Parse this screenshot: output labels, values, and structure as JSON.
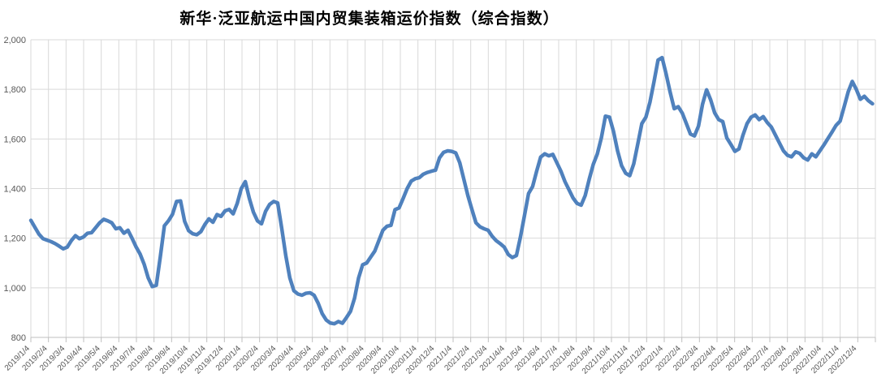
{
  "title": "新华·泛亚航运中国内贸集装箱运价指数（综合指数）",
  "colors": {
    "line": "#4F81BD",
    "grid": "#D9D9D9",
    "axis": "#BFBFBF",
    "tick_label": "#595959",
    "title": "#000000",
    "background": "#FFFFFF"
  },
  "chart_data": {
    "type": "line",
    "title": "新华·泛亚航运中国内贸集装箱运价指数（综合指数）",
    "xlabel": "",
    "ylabel": "",
    "ylim": [
      800,
      2000
    ],
    "grid": true,
    "legend_position": "none",
    "y_ticks": [
      {
        "value": 800,
        "label": "800"
      },
      {
        "value": 1000,
        "label": "1,000"
      },
      {
        "value": 1200,
        "label": "1,200"
      },
      {
        "value": 1400,
        "label": "1,400"
      },
      {
        "value": 1600,
        "label": "1,600"
      },
      {
        "value": 1800,
        "label": "1,800"
      },
      {
        "value": 2000,
        "label": "2,000"
      }
    ],
    "x_tick_labels": [
      "2019/1/4",
      "2019/2/4",
      "2019/3/4",
      "2019/4/4",
      "2019/5/4",
      "2019/6/4",
      "2019/7/4",
      "2019/8/4",
      "2019/9/4",
      "2019/10/4",
      "2019/11/4",
      "2019/12/4",
      "2020/1/4",
      "2020/2/4",
      "2020/3/4",
      "2020/4/4",
      "2020/5/4",
      "2020/6/4",
      "2020/7/4",
      "2020/8/4",
      "2020/9/4",
      "2020/10/4",
      "2020/11/4",
      "2020/12/4",
      "2021/1/4",
      "2021/2/4",
      "2021/3/4",
      "2021/4/4",
      "2021/5/4",
      "2021/6/4",
      "2021/7/4",
      "2021/8/4",
      "2021/9/4",
      "2021/10/4",
      "2021/11/4",
      "2021/12/4",
      "2022/1/4",
      "2022/2/4",
      "2022/3/4",
      "2022/4/4",
      "2022/5/4",
      "2022/6/4",
      "2022/7/4",
      "2022/8/4",
      "2022/9/4",
      "2022/10/4",
      "2022/11/4",
      "2022/12/4"
    ],
    "series": [
      {
        "name": "综合指数",
        "x_start": "2019/1/4",
        "x_interval_days": 7,
        "values": [
          1272,
          1244,
          1216,
          1198,
          1192,
          1186,
          1178,
          1168,
          1157,
          1164,
          1190,
          1210,
          1198,
          1205,
          1220,
          1222,
          1242,
          1262,
          1276,
          1270,
          1262,
          1238,
          1242,
          1220,
          1232,
          1200,
          1165,
          1136,
          1095,
          1040,
          1005,
          1010,
          1126,
          1250,
          1270,
          1296,
          1348,
          1350,
          1268,
          1230,
          1218,
          1214,
          1226,
          1255,
          1278,
          1264,
          1295,
          1288,
          1310,
          1316,
          1298,
          1340,
          1400,
          1428,
          1360,
          1305,
          1270,
          1258,
          1308,
          1336,
          1348,
          1342,
          1240,
          1130,
          1040,
          988,
          975,
          970,
          978,
          980,
          970,
          938,
          896,
          870,
          858,
          855,
          864,
          857,
          880,
          905,
          958,
          1040,
          1093,
          1100,
          1124,
          1148,
          1190,
          1232,
          1248,
          1252,
          1315,
          1322,
          1360,
          1400,
          1430,
          1440,
          1444,
          1458,
          1465,
          1470,
          1474,
          1524,
          1546,
          1552,
          1550,
          1544,
          1504,
          1438,
          1372,
          1316,
          1262,
          1246,
          1238,
          1232,
          1208,
          1190,
          1178,
          1164,
          1134,
          1122,
          1130,
          1205,
          1292,
          1380,
          1408,
          1470,
          1527,
          1540,
          1532,
          1538,
          1504,
          1470,
          1428,
          1395,
          1362,
          1340,
          1333,
          1372,
          1438,
          1498,
          1540,
          1605,
          1692,
          1688,
          1630,
          1552,
          1492,
          1462,
          1452,
          1500,
          1580,
          1662,
          1688,
          1748,
          1830,
          1918,
          1928,
          1862,
          1788,
          1722,
          1730,
          1704,
          1662,
          1620,
          1612,
          1652,
          1740,
          1798,
          1758,
          1705,
          1678,
          1670,
          1604,
          1578,
          1550,
          1560,
          1616,
          1662,
          1688,
          1697,
          1678,
          1690,
          1666,
          1648,
          1616,
          1584,
          1552,
          1534,
          1528,
          1548,
          1542,
          1524,
          1515,
          1540,
          1528,
          1552,
          1576,
          1602,
          1628,
          1655,
          1672,
          1730,
          1790,
          1832,
          1800,
          1760,
          1772,
          1754,
          1742
        ]
      }
    ]
  }
}
